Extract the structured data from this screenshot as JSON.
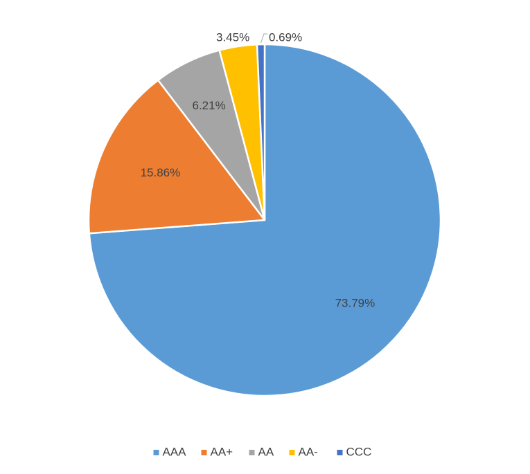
{
  "chart_data": {
    "type": "pie",
    "title": "",
    "legend_position": "bottom",
    "categories": [
      "AAA",
      "AA+",
      "AA",
      "AA-",
      "CCC"
    ],
    "values": [
      73.79,
      15.86,
      6.21,
      3.45,
      0.69
    ],
    "value_labels": [
      "73.79%",
      "15.86%",
      "6.21%",
      "3.45%",
      "0.69%"
    ],
    "colors": [
      "#5B9BD5",
      "#ED7D31",
      "#A5A5A5",
      "#FFC000",
      "#4472C4"
    ]
  }
}
